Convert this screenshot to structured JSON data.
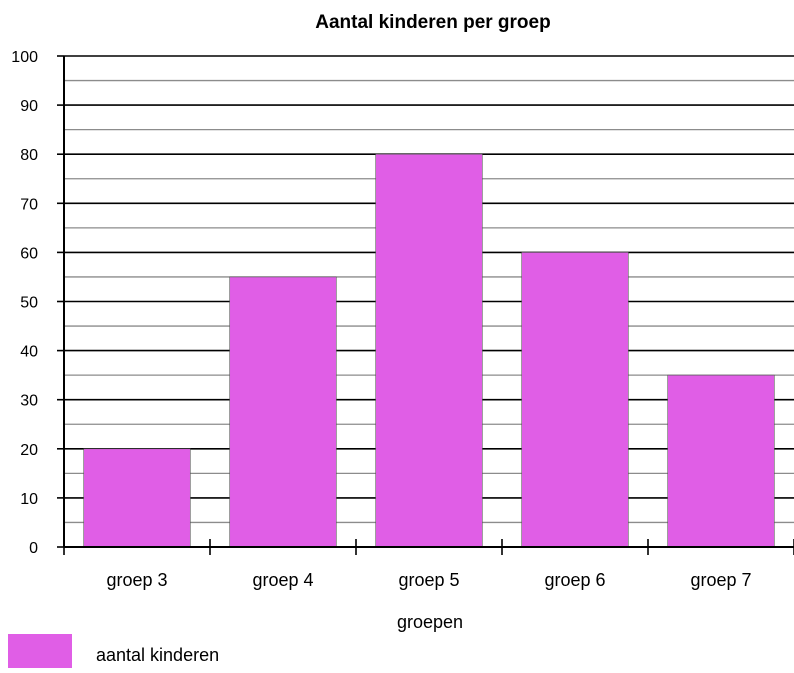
{
  "chart_data": {
    "type": "bar",
    "title": "Aantal kinderen per groep",
    "xlabel": "groepen",
    "ylabel": "",
    "categories": [
      "groep 3",
      "groep 4",
      "groep 5",
      "groep 6",
      "groep 7"
    ],
    "series": [
      {
        "name": "aantal kinderen",
        "values": [
          20,
          55,
          80,
          60,
          35
        ],
        "color": "#e05ee6"
      }
    ],
    "ylim": [
      0,
      100
    ],
    "yticks": [
      "0",
      "10",
      "20",
      "30",
      "40",
      "50",
      "60",
      "70",
      "80",
      "90",
      "100"
    ],
    "grid": true,
    "legend": "bottom-left"
  }
}
